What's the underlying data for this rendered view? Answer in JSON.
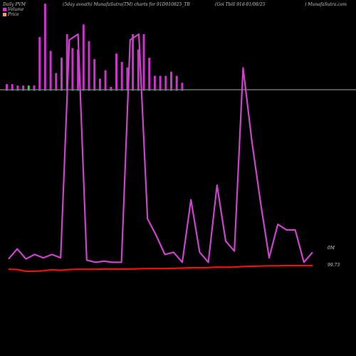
{
  "header": {
    "left": "Daily PVM",
    "mid1": "(5day avoath) MunafaSutra(TM) charts for 91D010825_TB",
    "mid2": "(Goi  Tbill 91d-01/08/25",
    "right": ") MunafaSutra.com"
  },
  "legend": [
    {
      "label": "Volume",
      "color": "#cc33cc"
    },
    {
      "label": "Price",
      "color": "#e8a060"
    }
  ],
  "colors": {
    "volume_bar": "#cc33cc",
    "volume_line": "#cc44cc",
    "price_line": "#ee1111",
    "baseline": "#aaaaaa",
    "small_bar_green": "#33cc66"
  },
  "chart_data": {
    "type": "bar",
    "side_labels": {
      "volume_current": "0M",
      "price_current": "99.73"
    },
    "volume_bars": [
      4,
      4,
      3,
      3,
      3,
      3,
      38,
      62,
      28,
      12,
      23,
      40,
      30,
      29,
      47,
      35,
      22,
      8,
      14,
      2,
      26,
      20,
      16,
      40,
      29,
      40,
      23,
      10,
      10,
      10,
      13,
      10,
      5
    ],
    "volume_bar_colors": [
      "m",
      "m",
      "m",
      "m",
      "g",
      "m",
      "m",
      "m",
      "m",
      "m",
      "m",
      "m",
      "m",
      "m",
      "m",
      "m",
      "m",
      "m",
      "m",
      "m",
      "m",
      "m",
      "m",
      "m",
      "m",
      "m",
      "m",
      "m",
      "m",
      "m",
      "m",
      "m",
      "m"
    ],
    "volume_line": [
      4,
      13,
      4,
      8,
      5,
      8,
      5,
      200,
      205,
      3,
      1,
      2,
      1,
      1,
      200,
      205,
      40,
      25,
      8,
      10,
      1,
      57,
      10,
      1,
      70,
      20,
      11,
      175,
      110,
      55,
      5,
      35,
      30,
      30,
      1,
      10
    ],
    "price_line": [
      99.58,
      99.57,
      99.5,
      99.5,
      99.52,
      99.56,
      99.54,
      99.57,
      99.58,
      99.58,
      99.58,
      99.59,
      99.59,
      99.59,
      99.59,
      99.6,
      99.61,
      99.61,
      99.61,
      99.62,
      99.63,
      99.64,
      99.64,
      99.65,
      99.67,
      99.66,
      99.67,
      99.69,
      99.7,
      99.71,
      99.72,
      99.72,
      99.73,
      99.73,
      99.73,
      99.73
    ]
  }
}
